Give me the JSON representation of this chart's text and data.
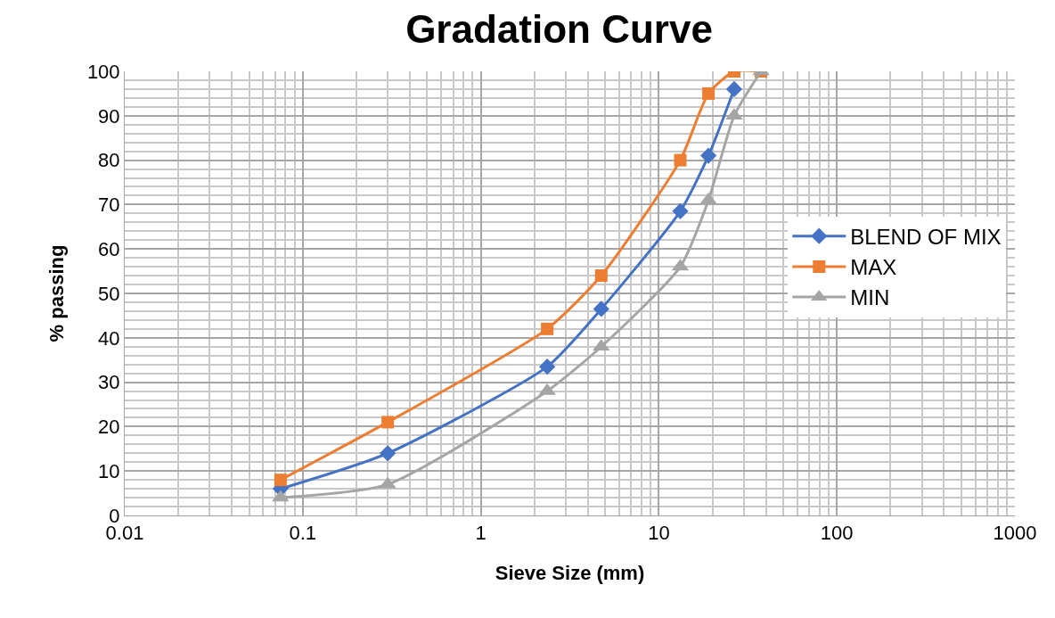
{
  "chart_data": {
    "type": "line",
    "title": "Gradation Curve",
    "xlabel": "Sieve Size (mm)",
    "ylabel": "% passing",
    "x": [
      0.075,
      0.3,
      2.36,
      4.75,
      13.2,
      19,
      26.5,
      37.5
    ],
    "series": [
      {
        "name": "BLEND OF MIX",
        "color": "#4472c4",
        "marker": "diamond",
        "values": [
          6,
          14,
          33.5,
          46.5,
          68.5,
          81,
          96,
          null
        ]
      },
      {
        "name": "MAX",
        "color": "#ed7d31",
        "marker": "square",
        "values": [
          8,
          21,
          42,
          54,
          80,
          95,
          100,
          100
        ]
      },
      {
        "name": "MIN",
        "color": "#a5a5a5",
        "marker": "triangle",
        "values": [
          4,
          7,
          28,
          38,
          56,
          71,
          90,
          100
        ]
      }
    ],
    "log": "x",
    "xlim": [
      0.01,
      1000
    ],
    "xticks": [
      0.01,
      0.1,
      1,
      10,
      100,
      1000
    ],
    "ylim": [
      0,
      100
    ],
    "yticks": [
      0,
      10,
      20,
      30,
      40,
      50,
      60,
      70,
      80,
      90,
      100
    ],
    "grid": true,
    "legend": "right",
    "line_style": "solid"
  }
}
